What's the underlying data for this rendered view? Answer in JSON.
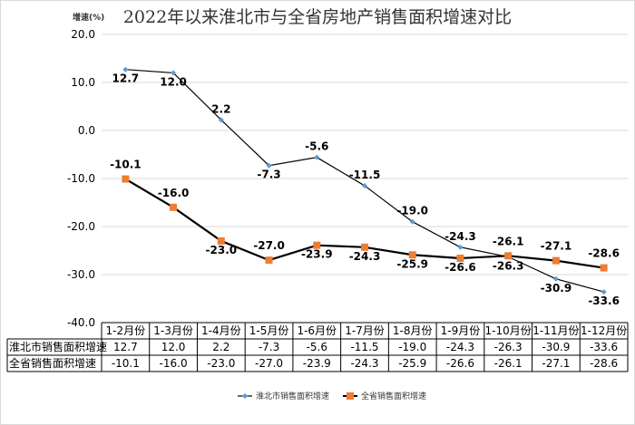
{
  "chart_data": {
    "type": "line",
    "title": "2022年以来淮北市与全省房地产销售面积增速对比",
    "ylabel": "增速(%)",
    "xlabel": "",
    "ylim": [
      -40,
      20
    ],
    "yticks": [
      "20.0",
      "10.0",
      "0.0",
      "-10.0",
      "-20.0",
      "-30.0",
      "-40.0"
    ],
    "ytick_values": [
      20,
      10,
      0,
      -10,
      -20,
      -30,
      -40
    ],
    "grid": true,
    "legend": "bottom",
    "categories": [
      "1-2月份",
      "1-3月份",
      "1-4月份",
      "1-5月份",
      "1-6月份",
      "1-7月份",
      "1-8月份",
      "1-9月份",
      "1-10月份",
      "1-11月份",
      "1-12月份"
    ],
    "series": [
      {
        "name": "淮北市销售面积增速",
        "color": "#5b9bd5",
        "marker": "diamond",
        "values": [
          12.7,
          12.0,
          2.2,
          -7.3,
          -5.6,
          -11.5,
          -19.0,
          -24.3,
          -26.3,
          -30.9,
          -33.6
        ],
        "labels": [
          "12.7",
          "12.0",
          "2.2",
          "-7.3",
          "-5.6",
          "-11.5",
          "-19.0",
          "-24.3",
          "-26.3",
          "-30.9",
          "-33.6"
        ]
      },
      {
        "name": "全省销售面积增速",
        "color": "#ed7d31",
        "marker": "square",
        "values": [
          -10.1,
          -16.0,
          -23.0,
          -27.0,
          -23.9,
          -24.3,
          -25.9,
          -26.6,
          -26.1,
          -27.1,
          -28.6
        ],
        "labels": [
          "-10.1",
          "-16.0",
          "-23.0",
          "-27.0",
          "-23.9",
          "-24.3",
          "-25.9",
          "-26.6",
          "-26.1",
          "-27.1",
          "-28.6"
        ]
      }
    ]
  }
}
